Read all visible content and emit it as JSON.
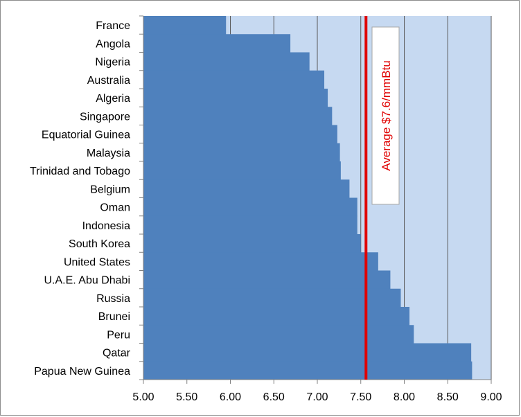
{
  "chart_data": {
    "type": "bar",
    "orientation": "horizontal",
    "categories": [
      "France",
      "Angola",
      "Nigeria",
      "Australia",
      "Algeria",
      "Singapore",
      "Equatorial Guinea",
      "Malaysia",
      "Trinidad and Tobago",
      "Belgium",
      "Oman",
      "Indonesia",
      "South Korea",
      "United States",
      "U.A.E. Abu Dhabi",
      "Russia",
      "Brunei",
      "Peru",
      "Qatar",
      "Papua New Guinea"
    ],
    "values": [
      5.95,
      6.69,
      6.91,
      7.08,
      7.12,
      7.17,
      7.23,
      7.26,
      7.27,
      7.37,
      7.46,
      7.46,
      7.5,
      7.7,
      7.84,
      7.96,
      8.06,
      8.11,
      8.77,
      8.78
    ],
    "xlim": [
      5.0,
      9.0
    ],
    "xticks": [
      "5.00",
      "5.50",
      "6.00",
      "6.50",
      "7.00",
      "7.50",
      "8.00",
      "8.50",
      "9.00"
    ],
    "xtick_values": [
      5.0,
      5.5,
      6.0,
      6.5,
      7.0,
      7.5,
      8.0,
      8.5,
      9.0
    ],
    "grid": "vertical",
    "average_line": {
      "value": 7.56,
      "label": "Average $7.6/mmBtu"
    },
    "colors": {
      "bar": "#4f81bd",
      "plot_background": "#c6d9f1",
      "gridline": "#595959",
      "average_line": "#e00000",
      "annotation_text": "#e00000"
    }
  }
}
